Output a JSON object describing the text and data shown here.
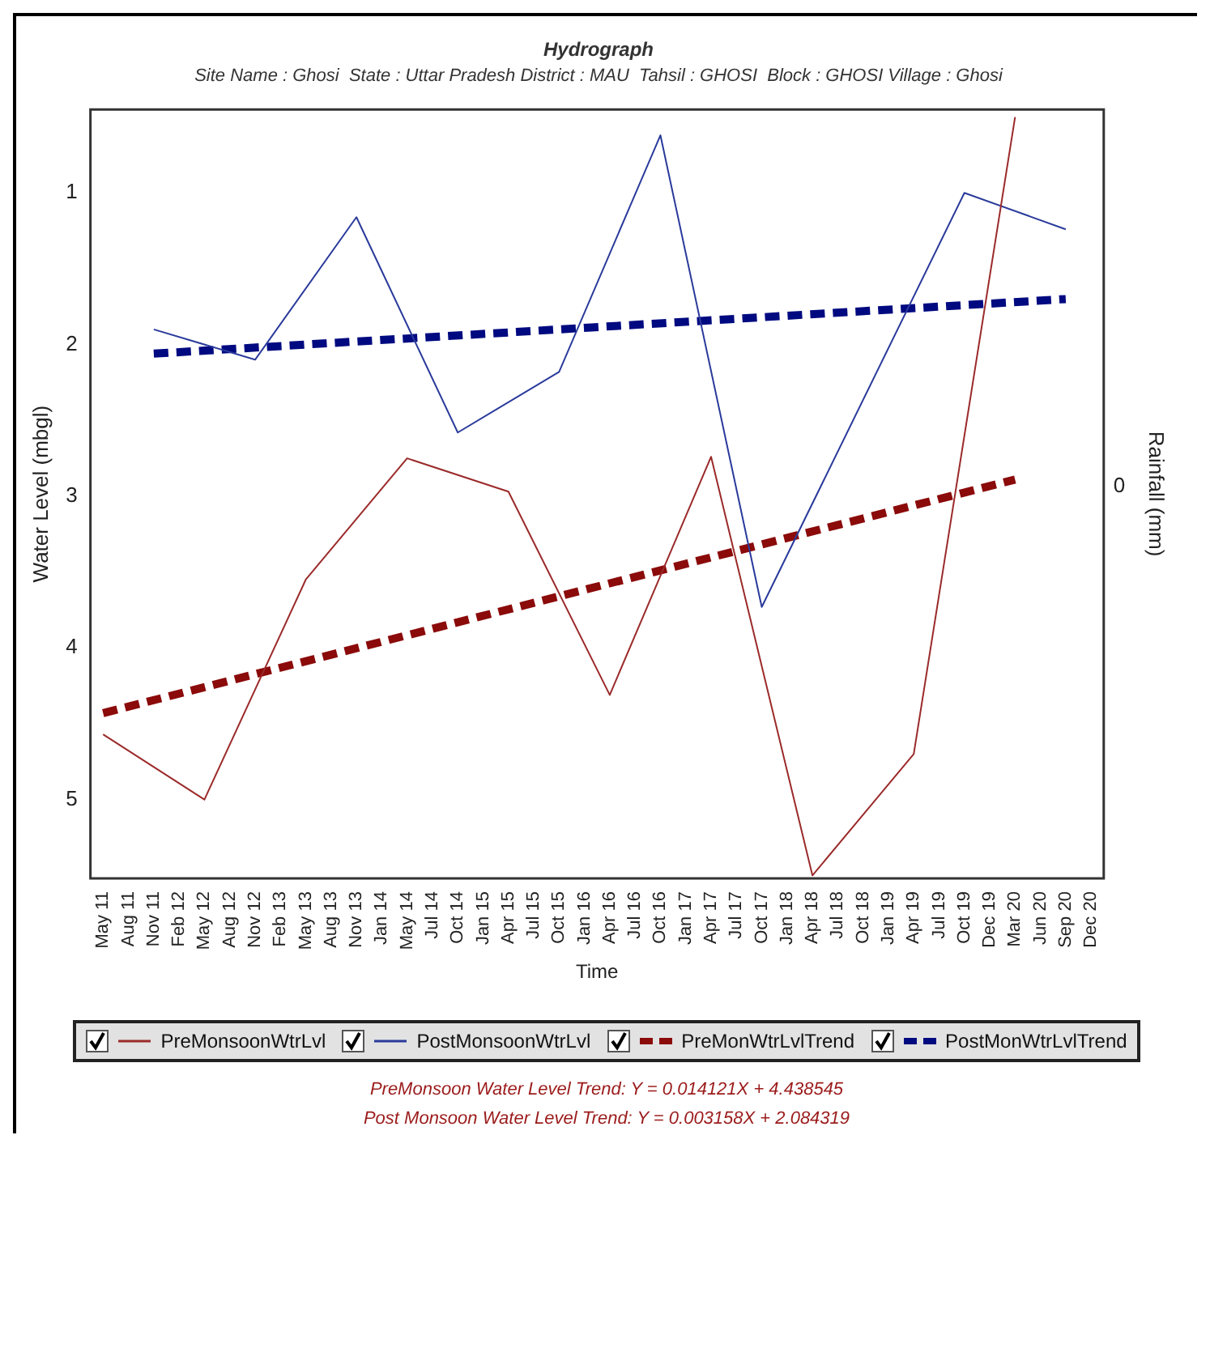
{
  "chart_data": {
    "type": "line",
    "title": "Hydrograph",
    "subtitle": "Site Name : Ghosi  State : Uttar Pradesh District : MAU  Tahsil : GHOSI  Block : GHOSI Village : Ghosi",
    "xlabel": "Time",
    "ylabel": "Water Level (mbgl)",
    "y2label": "Rainfall (mm)",
    "categories": [
      "May 11",
      "Aug 11",
      "Nov 11",
      "Feb 12",
      "May 12",
      "Aug 12",
      "Nov 12",
      "Feb 13",
      "May 13",
      "Aug 13",
      "Nov 13",
      "Jan 14",
      "May 14",
      "Jul 14",
      "Oct 14",
      "Jan 15",
      "Apr 15",
      "Jul 15",
      "Oct 15",
      "Jan 16",
      "Apr 16",
      "Jul 16",
      "Oct 16",
      "Jan 17",
      "Apr 17",
      "Jul 17",
      "Oct 17",
      "Jan 18",
      "Apr 18",
      "Jul 18",
      "Oct 18",
      "Jan 19",
      "Apr 19",
      "Jul 19",
      "Oct 19",
      "Dec 19",
      "Mar 20",
      "Jun 20",
      "Sep 20",
      "Dec 20"
    ],
    "series": [
      {
        "name": "PreMonsoonWtrLvl",
        "color": "#9b2a2a",
        "line_style": "solid",
        "values": [
          4.57,
          null,
          null,
          null,
          5.0,
          null,
          null,
          null,
          3.55,
          null,
          null,
          null,
          2.75,
          null,
          null,
          null,
          2.97,
          null,
          null,
          null,
          4.31,
          null,
          null,
          null,
          2.74,
          null,
          null,
          null,
          5.5,
          null,
          null,
          null,
          4.7,
          null,
          null,
          null,
          0.5,
          null,
          null,
          null
        ]
      },
      {
        "name": "PostMonsoonWtrLvl",
        "color": "#2a3a9b",
        "line_style": "solid",
        "values": [
          null,
          null,
          1.9,
          null,
          null,
          null,
          2.1,
          null,
          null,
          null,
          1.16,
          null,
          null,
          null,
          2.58,
          null,
          null,
          null,
          2.18,
          null,
          null,
          null,
          0.62,
          null,
          null,
          null,
          3.73,
          null,
          null,
          null,
          null,
          null,
          null,
          null,
          1.0,
          null,
          null,
          null,
          1.24,
          null
        ]
      },
      {
        "name": "PreMonWtrLvlTrend",
        "color": "#8b0a0a",
        "line_style": "dashed",
        "values": [
          4.43,
          null,
          null,
          null,
          null,
          null,
          null,
          null,
          null,
          null,
          null,
          null,
          null,
          null,
          null,
          null,
          null,
          null,
          null,
          null,
          null,
          null,
          null,
          null,
          null,
          null,
          null,
          null,
          null,
          null,
          null,
          null,
          null,
          null,
          null,
          null,
          2.89,
          null,
          null,
          null
        ]
      },
      {
        "name": "PostMonWtrLvlTrend",
        "color": "#000a80",
        "line_style": "dashed",
        "values": [
          null,
          null,
          2.06,
          null,
          null,
          null,
          null,
          null,
          null,
          null,
          null,
          null,
          null,
          null,
          null,
          null,
          null,
          null,
          null,
          null,
          null,
          null,
          null,
          null,
          null,
          null,
          null,
          null,
          null,
          null,
          null,
          null,
          null,
          null,
          null,
          null,
          null,
          null,
          1.7,
          null
        ]
      }
    ],
    "ylim": [
      5.52,
      0.45
    ],
    "yticks": [
      1,
      2,
      3,
      4,
      5
    ],
    "grid": false,
    "legend": "bottom",
    "marker": "none",
    "annotations": [
      "0",
      "PreMonsoon Water Level Trend: Y = 0.014121X + 4.438545",
      "Post Monsoon Water Level Trend: Y = 0.003158X + 2.084319"
    ]
  }
}
